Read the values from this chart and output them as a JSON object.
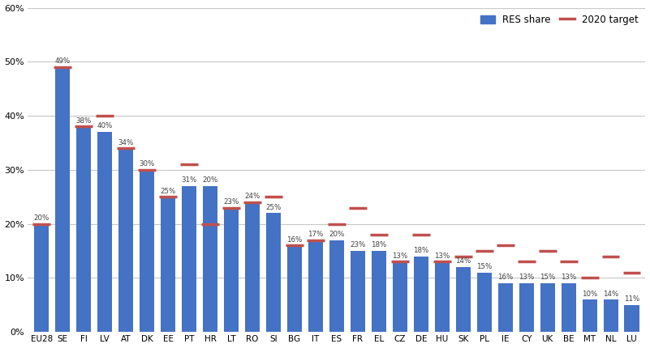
{
  "categories": [
    "EU28",
    "SE",
    "FI",
    "LV",
    "AT",
    "DK",
    "EE",
    "PT",
    "HR",
    "LT",
    "RO",
    "SI",
    "BG",
    "IT",
    "ES",
    "FR",
    "EL",
    "CZ",
    "DE",
    "HU",
    "SK",
    "PL",
    "IE",
    "CY",
    "UK",
    "BE",
    "MT",
    "NL",
    "LU"
  ],
  "res_share": [
    20,
    49,
    38,
    37,
    34,
    30,
    25,
    27,
    27,
    23,
    24,
    22,
    16,
    17,
    17,
    15,
    15,
    13,
    14,
    13,
    12,
    11,
    9,
    9,
    9,
    9,
    6,
    6,
    5
  ],
  "res_labels": [
    "20%",
    "49%",
    "38%",
    "40%",
    "34%",
    "30%",
    "25%",
    "31%",
    "20%",
    "23%",
    "24%",
    "25%",
    "16%",
    "17%",
    "20%",
    "23%",
    "18%",
    "13%",
    "18%",
    "13%",
    "14%",
    "15%",
    "16%",
    "13%",
    "15%",
    "13%",
    "10%",
    "14%",
    "11%"
  ],
  "target": [
    20,
    49,
    38,
    40,
    34,
    30,
    25,
    31,
    20,
    23,
    24,
    25,
    16,
    17,
    20,
    23,
    18,
    13,
    18,
    13,
    14,
    15,
    16,
    13,
    15,
    13,
    10,
    14,
    11
  ],
  "bar_color": "#4472C4",
  "target_color": "#C0504D",
  "ylim": [
    0,
    60
  ],
  "yticks": [
    0,
    10,
    20,
    30,
    40,
    50,
    60
  ],
  "legend_bar_label": "RES share",
  "legend_line_label": "2020 target",
  "background_color": "#FFFFFF",
  "grid_color": "#C8C8C8"
}
